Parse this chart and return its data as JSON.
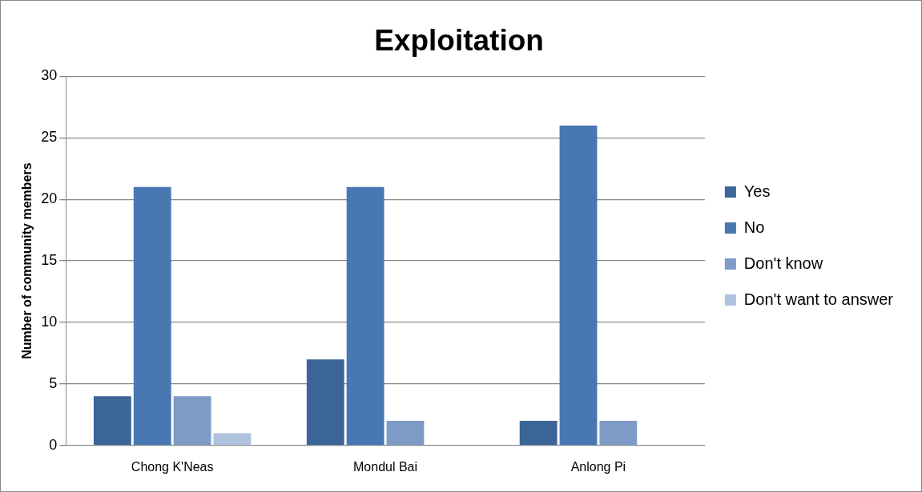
{
  "chart_data": {
    "type": "bar",
    "title": "Exploitation",
    "ylabel": "Number of community members",
    "categories": [
      "Chong K'Neas",
      "Mondul Bai",
      "Anlong Pi"
    ],
    "series": [
      {
        "name": "Yes",
        "color": "#3c6597",
        "values": [
          4,
          7,
          2
        ]
      },
      {
        "name": "No",
        "color": "#4877b1",
        "values": [
          21,
          21,
          26
        ]
      },
      {
        "name": "Don't know",
        "color": "#7e9bc8",
        "values": [
          4,
          2,
          2
        ]
      },
      {
        "name": "Don't want to answer",
        "color": "#b1c2de",
        "values": [
          1,
          0,
          0
        ]
      }
    ],
    "ylim": [
      0,
      30
    ],
    "yticks": [
      0,
      5,
      10,
      15,
      20,
      25,
      30
    ],
    "grid": "y",
    "legend": "right"
  }
}
